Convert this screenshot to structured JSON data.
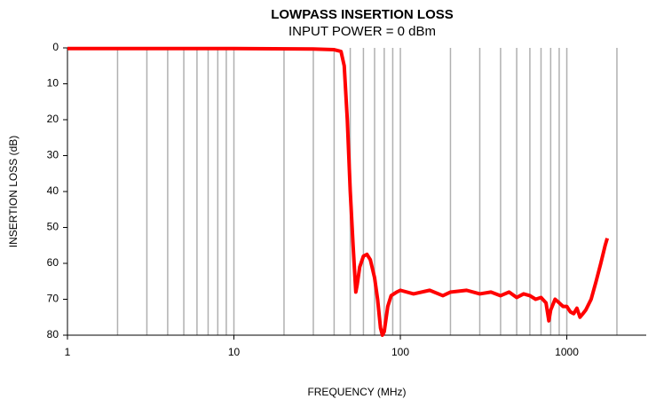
{
  "chart_data": {
    "type": "line",
    "title": "LOWPASS INSERTION LOSS",
    "subtitle": "INPUT POWER = 0 dBm",
    "xlabel": "FREQUENCY (MHz)",
    "ylabel": "INSERTION LOSS (dB)",
    "xscale": "log",
    "xlim": [
      1,
      3000
    ],
    "xticks": [
      1,
      10,
      100,
      1000
    ],
    "xgrid": [
      2,
      3,
      4,
      5,
      6,
      7,
      8,
      9,
      10,
      20,
      30,
      40,
      50,
      60,
      70,
      80,
      90,
      100,
      200,
      300,
      400,
      500,
      600,
      700,
      800,
      900,
      1000,
      2000
    ],
    "ylim": [
      80,
      0
    ],
    "yticks": [
      0,
      10,
      20,
      30,
      40,
      50,
      60,
      70,
      80
    ],
    "series": [
      {
        "name": "Insertion loss",
        "color": "#ff0000",
        "x": [
          1,
          10,
          30,
          40,
          44,
          46,
          48,
          50,
          52,
          54,
          55,
          57,
          60,
          63,
          66,
          70,
          73,
          76,
          78,
          80,
          84,
          88,
          95,
          100,
          120,
          150,
          180,
          200,
          250,
          300,
          350,
          400,
          450,
          500,
          550,
          600,
          650,
          700,
          750,
          780,
          800,
          850,
          900,
          950,
          1000,
          1050,
          1100,
          1150,
          1200,
          1250,
          1300,
          1400,
          1500,
          1600,
          1700,
          1750
        ],
        "values": [
          0.2,
          0.2,
          0.3,
          0.5,
          1,
          5,
          20,
          40,
          55,
          68,
          66,
          61,
          58,
          57.5,
          59,
          64,
          70,
          78,
          80,
          79,
          72,
          69,
          68,
          67.5,
          68.5,
          67.5,
          69,
          68,
          67.5,
          68.5,
          68,
          69,
          68,
          69.5,
          68.5,
          69,
          70,
          69.5,
          71,
          76,
          73,
          70,
          71,
          72,
          72,
          73.5,
          74,
          72.5,
          75,
          74,
          73,
          70,
          65,
          60,
          55,
          53
        ]
      }
    ]
  }
}
